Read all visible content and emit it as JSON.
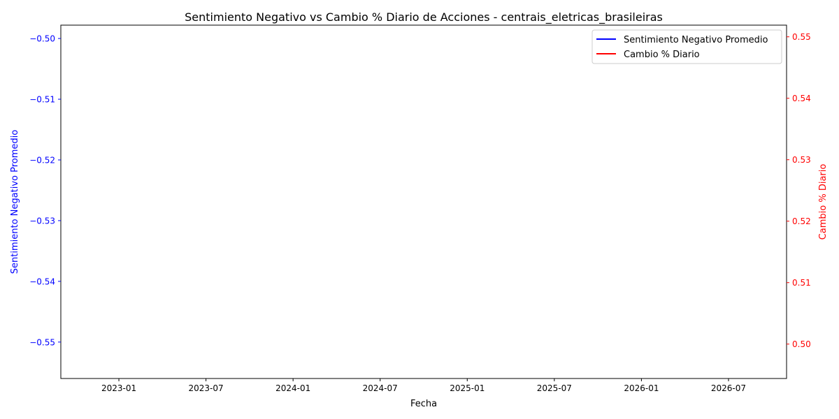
{
  "chart_data": {
    "type": "line",
    "title": "Sentimiento Negativo vs Cambio % Diario de Acciones - centrais_eletricas_brasileiras",
    "xlabel": "Fecha",
    "ylabel_left": "Sentimiento Negativo Promedio",
    "ylabel_right": "Cambio % Diario",
    "x_ticks": [
      "2023-01",
      "2023-07",
      "2024-01",
      "2024-07",
      "2025-01",
      "2025-07",
      "2026-01",
      "2026-07"
    ],
    "x_range": [
      "2022-09",
      "2026-11"
    ],
    "y_left": {
      "ylim": [
        -0.556,
        -0.4978
      ],
      "ticks": [
        -0.5,
        -0.51,
        -0.52,
        -0.53,
        -0.54,
        -0.55
      ],
      "tick_labels": [
        "−0.50",
        "−0.51",
        "−0.52",
        "−0.53",
        "−0.54",
        "−0.55"
      ],
      "color": "#0000ff"
    },
    "y_right": {
      "ylim": [
        0.4944,
        0.5519
      ],
      "ticks": [
        0.55,
        0.54,
        0.53,
        0.52,
        0.51,
        0.5
      ],
      "tick_labels": [
        "0.55",
        "0.54",
        "0.53",
        "0.52",
        "0.51",
        "0.50"
      ],
      "color": "#ff0000"
    },
    "series": [
      {
        "name": "Sentimiento Negativo Promedio",
        "axis": "left",
        "color": "#0000ff",
        "values": []
      },
      {
        "name": "Cambio % Diario",
        "axis": "right",
        "color": "#ff0000",
        "values": []
      }
    ],
    "legend_position": "top-right",
    "grid": false
  }
}
